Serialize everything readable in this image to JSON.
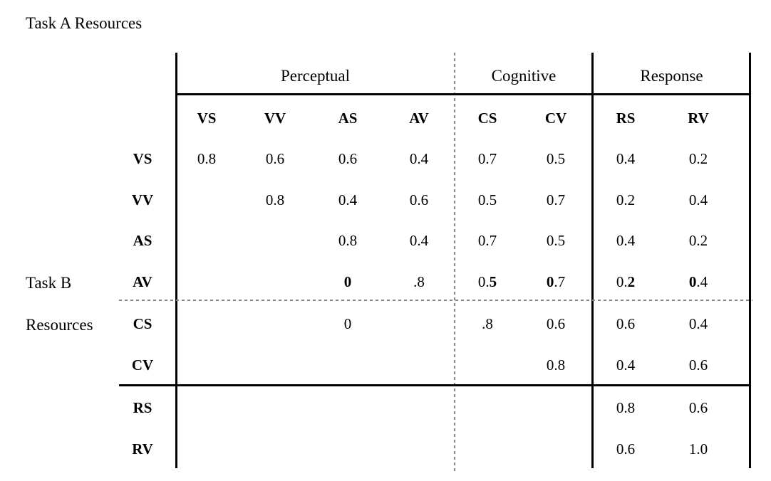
{
  "title": "Task A Resources",
  "side_label": {
    "line1": "Task B",
    "line2": "Resources"
  },
  "groups": [
    {
      "label": "Perceptual"
    },
    {
      "label": "Cognitive"
    },
    {
      "label": "Response"
    }
  ],
  "columns": [
    "VS",
    "VV",
    "AS",
    "AV",
    "CS",
    "CV",
    "RS",
    "RV"
  ],
  "rows": [
    {
      "label": "VS",
      "cells": [
        "0.8",
        "0.6",
        "0.6",
        "0.4",
        "0.7",
        "0.5",
        "0.4",
        "0.2"
      ]
    },
    {
      "label": "VV",
      "cells": [
        "",
        "0.8",
        "0.4",
        "0.6",
        "0.5",
        "0.7",
        "0.2",
        "0.4"
      ]
    },
    {
      "label": "AS",
      "cells": [
        "",
        "",
        "0.8",
        "0.4",
        "0.7",
        "0.5",
        "0.4",
        "0.2"
      ]
    },
    {
      "label": [
        {
          "t": "A"
        },
        {
          "t": "V",
          "b": true
        }
      ],
      "cells": [
        "",
        "",
        [
          {
            "t": "0",
            "b": true
          }
        ],
        ".8",
        [
          {
            "t": "0."
          },
          {
            "t": "5",
            "b": true
          }
        ],
        [
          {
            "t": "0",
            "b": true
          },
          {
            "t": ".7"
          }
        ],
        [
          {
            "t": "0."
          },
          {
            "t": "2",
            "b": true
          }
        ],
        [
          {
            "t": "0",
            "b": true
          },
          {
            "t": ".4"
          }
        ]
      ]
    },
    {
      "label": "CS",
      "cells": [
        "",
        "",
        "0",
        "",
        ".8",
        "0.6",
        "0.6",
        "0.4"
      ]
    },
    {
      "label": "CV",
      "cells": [
        "",
        "",
        "",
        "",
        "",
        "0.8",
        "0.4",
        "0.6"
      ]
    },
    {
      "label": "RS",
      "cells": [
        "",
        "",
        "",
        "",
        "",
        "",
        "0.8",
        "0.6"
      ]
    },
    {
      "label": "RV",
      "cells": [
        "",
        "",
        "",
        "",
        "",
        "",
        "0.6",
        "1.0"
      ]
    }
  ],
  "colors": {
    "text": "#000000",
    "solid_line": "#000000",
    "dashed_line": "#878787",
    "background": "#ffffff"
  }
}
